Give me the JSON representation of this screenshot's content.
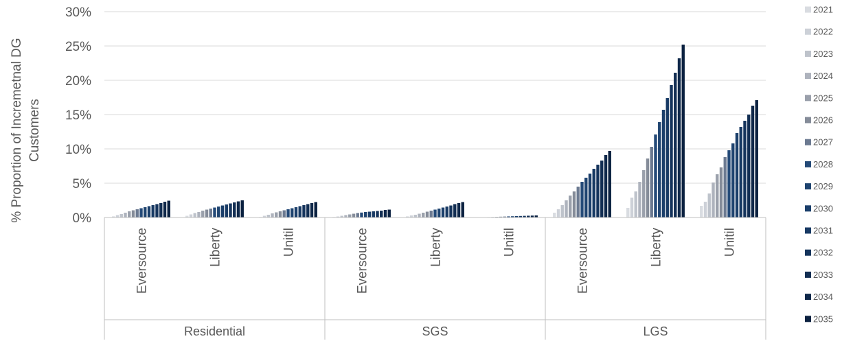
{
  "chart_data": {
    "type": "bar",
    "ylabel_lines": [
      "% Proportion of Incremetnal DG",
      "Customers"
    ],
    "ylim": [
      0,
      30
    ],
    "yticks": [
      "0%",
      "5%",
      "10%",
      "15%",
      "20%",
      "25%",
      "30%"
    ],
    "ytick_values": [
      0,
      5,
      10,
      15,
      20,
      25,
      30
    ],
    "grid": true,
    "legend_position": "right",
    "groups": [
      {
        "name": "Residential",
        "categories": [
          "Eversource",
          "Liberty",
          "Unitil"
        ]
      },
      {
        "name": "SGS",
        "categories": [
          "Eversource",
          "Liberty",
          "Unitil"
        ]
      },
      {
        "name": "LGS",
        "categories": [
          "Eversource",
          "Liberty",
          "Unitil"
        ]
      }
    ],
    "series_colors": [
      "#d9dce1",
      "#cdd1d8",
      "#bec3cb",
      "#aeb3bd",
      "#9aa0ab",
      "#858c99",
      "#6c7a91",
      "#244a78",
      "#1f4470",
      "#1b3f6b",
      "#183a64",
      "#15345c",
      "#122e53",
      "#0f284a",
      "#0b2140"
    ],
    "series": [
      {
        "name": "2021",
        "values": [
          0.17,
          0.25,
          0.08,
          0.08,
          0.17,
          0.02,
          0.7,
          1.4,
          1.7
        ]
      },
      {
        "name": "2022",
        "values": [
          0.35,
          0.45,
          0.25,
          0.15,
          0.3,
          0.04,
          1.2,
          2.9,
          2.3
        ]
      },
      {
        "name": "2023",
        "values": [
          0.5,
          0.65,
          0.4,
          0.25,
          0.4,
          0.06,
          1.8,
          3.8,
          3.5
        ]
      },
      {
        "name": "2024",
        "values": [
          0.7,
          0.8,
          0.6,
          0.35,
          0.55,
          0.08,
          2.5,
          5.2,
          5.1
        ]
      },
      {
        "name": "2025",
        "values": [
          0.9,
          1.0,
          0.75,
          0.45,
          0.7,
          0.1,
          3.2,
          6.9,
          6.3
        ]
      },
      {
        "name": "2026",
        "values": [
          1.05,
          1.15,
          0.9,
          0.55,
          0.85,
          0.12,
          3.8,
          8.6,
          7.3
        ]
      },
      {
        "name": "2027",
        "values": [
          1.2,
          1.3,
          1.05,
          0.65,
          1.0,
          0.14,
          4.5,
          10.3,
          8.8
        ]
      },
      {
        "name": "2028",
        "values": [
          1.35,
          1.45,
          1.2,
          0.72,
          1.15,
          0.16,
          5.2,
          12.1,
          9.8
        ]
      },
      {
        "name": "2029",
        "values": [
          1.5,
          1.6,
          1.35,
          0.8,
          1.3,
          0.18,
          5.8,
          13.9,
          10.8
        ]
      },
      {
        "name": "2030",
        "values": [
          1.65,
          1.75,
          1.5,
          0.85,
          1.45,
          0.2,
          6.4,
          15.7,
          12.3
        ]
      },
      {
        "name": "2031",
        "values": [
          1.8,
          1.9,
          1.65,
          0.9,
          1.6,
          0.22,
          7.1,
          17.4,
          13.2
        ]
      },
      {
        "name": "2032",
        "values": [
          1.95,
          2.05,
          1.8,
          0.95,
          1.75,
          0.24,
          7.7,
          19.3,
          14.1
        ]
      },
      {
        "name": "2033",
        "values": [
          2.1,
          2.2,
          1.95,
          1.0,
          1.95,
          0.26,
          8.3,
          21.1,
          15.0
        ]
      },
      {
        "name": "2034",
        "values": [
          2.3,
          2.35,
          2.1,
          1.1,
          2.1,
          0.28,
          9.1,
          23.2,
          16.3
        ]
      },
      {
        "name": "2035",
        "values": [
          2.45,
          2.5,
          2.25,
          1.15,
          2.25,
          0.3,
          9.7,
          25.2,
          17.1
        ]
      }
    ]
  }
}
